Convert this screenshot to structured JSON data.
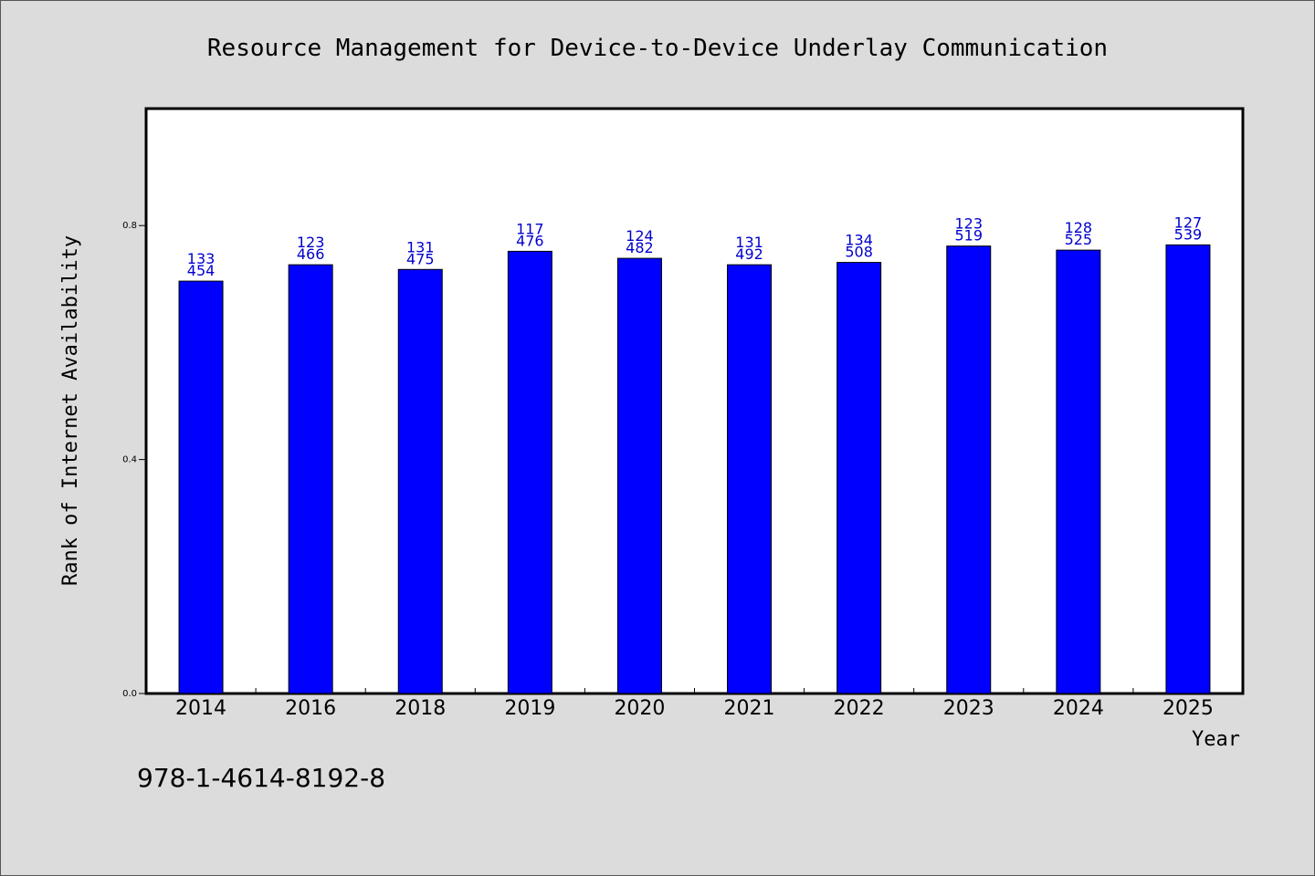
{
  "chart_data": {
    "type": "bar",
    "title": "Resource Management for Device-to-Device Underlay Communication",
    "xlabel": "Year",
    "ylabel": "Rank of Internet Availability",
    "categories": [
      "2014",
      "2016",
      "2018",
      "2019",
      "2020",
      "2021",
      "2022",
      "2023",
      "2024",
      "2025"
    ],
    "values": [
      0.705,
      0.733,
      0.725,
      0.756,
      0.744,
      0.733,
      0.737,
      0.765,
      0.758,
      0.767
    ],
    "labels_top": [
      "133",
      "123",
      "131",
      "117",
      "124",
      "131",
      "134",
      "123",
      "128",
      "127"
    ],
    "labels_bottom": [
      "454",
      "466",
      "475",
      "476",
      "482",
      "492",
      "508",
      "519",
      "525",
      "539"
    ],
    "yticks": [
      "0.0",
      "0.4",
      "0.8"
    ],
    "ytick_values": [
      0.0,
      0.4,
      0.8
    ],
    "ylim": [
      0,
      1.0
    ],
    "grid": false,
    "bar_color": "#0000ff",
    "label_color": "#0000cc"
  },
  "footnote": "978-1-4614-8192-8"
}
